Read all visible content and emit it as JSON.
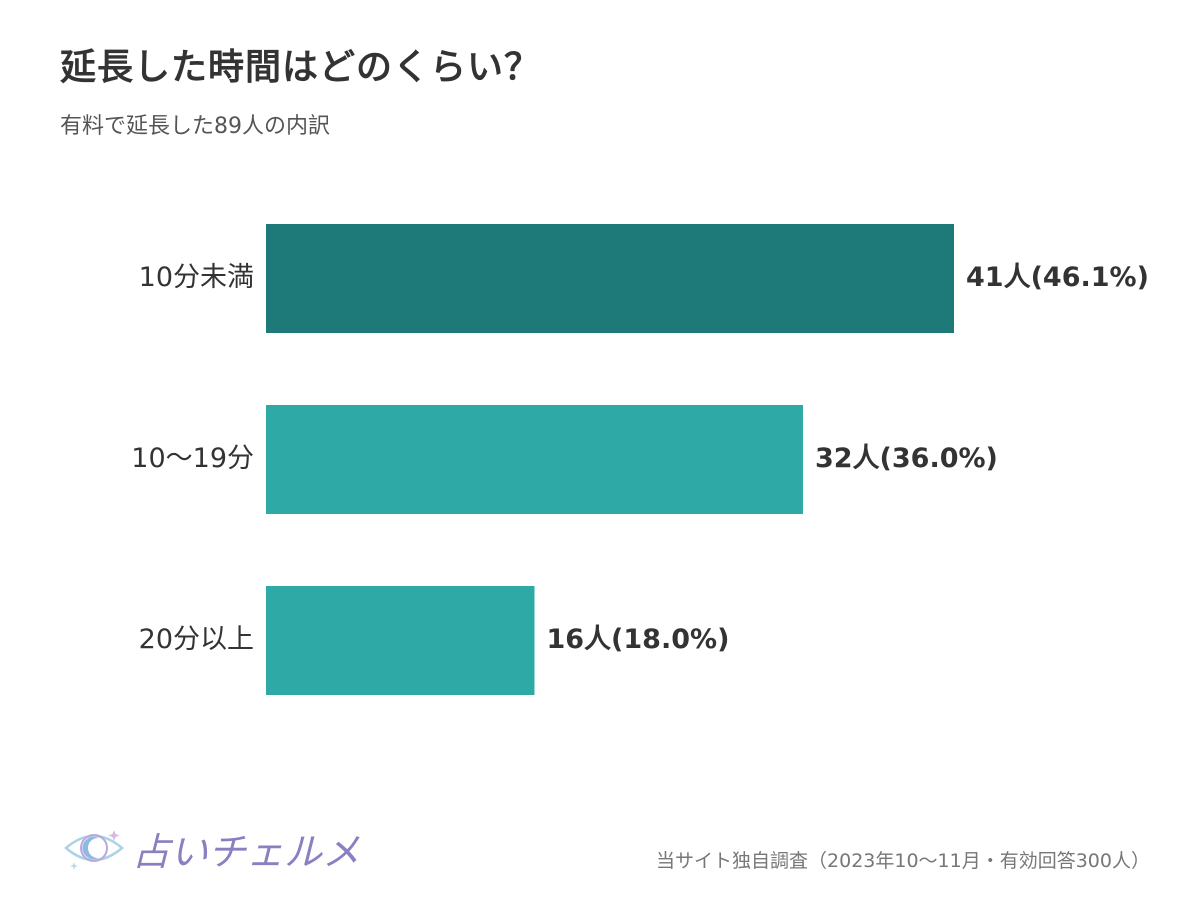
{
  "header": {
    "title": "延長した時間はどのくらい？",
    "subtitle": "有料で延長した89人の内訳"
  },
  "chart_data": {
    "type": "bar",
    "orientation": "horizontal",
    "categories": [
      "10分未満",
      "10〜19分",
      "20分以上"
    ],
    "values": [
      41,
      32,
      16
    ],
    "value_labels": [
      "41人(46.1%)",
      "32人(36.0%)",
      "16人(18.0%)"
    ],
    "colors": [
      "#1d7a78",
      "#2ea9a6",
      "#2ea9a6"
    ],
    "xlim": [
      0,
      41
    ],
    "grid": false,
    "legend": "none"
  },
  "footer": {
    "logo_text": "占いチェルメ",
    "logo_icon": "eye-moon-icon",
    "source_note": "当サイト独自調査（2023年10〜11月・有効回答300人）"
  }
}
